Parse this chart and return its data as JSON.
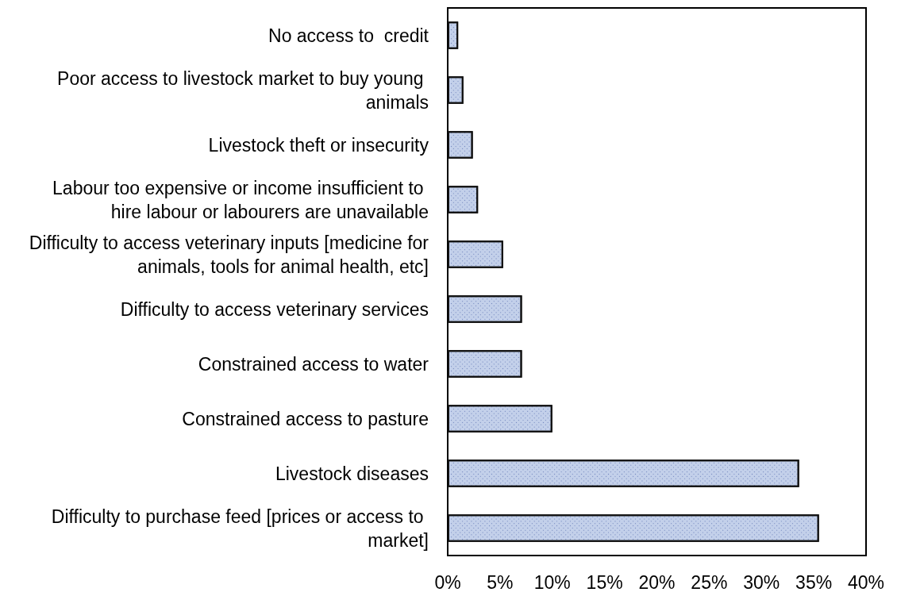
{
  "chart_data": {
    "type": "bar",
    "orientation": "horizontal",
    "categories": [
      "No access to  credit",
      "Poor access to livestock market to buy young animals",
      "Livestock theft or insecurity",
      "Labour too expensive or income insufficient to hire labour or labourers are unavailable",
      "Difficulty to access veterinary inputs [medicine for animals, tools for animal health, etc]",
      "Difficulty to access veterinary services",
      "Constrained access to water",
      "Constrained access to pasture",
      "Livestock diseases",
      "Difficulty to purchase feed [prices or access to market]"
    ],
    "values": [
      1.0,
      1.5,
      2.4,
      2.9,
      5.3,
      7.1,
      7.1,
      10.0,
      33.6,
      35.5
    ],
    "color": "#c3d0ea",
    "xlim": [
      0,
      40
    ],
    "xticks": [
      {
        "value": 0,
        "label": "0%"
      },
      {
        "value": 5,
        "label": "5%"
      },
      {
        "value": 10,
        "label": "10%"
      },
      {
        "value": 15,
        "label": "15%"
      },
      {
        "value": 20,
        "label": "20%"
      },
      {
        "value": 25,
        "label": "25%"
      },
      {
        "value": 30,
        "label": "30%"
      },
      {
        "value": 35,
        "label": "35%"
      },
      {
        "value": 40,
        "label": "40%"
      }
    ],
    "grid": false
  }
}
